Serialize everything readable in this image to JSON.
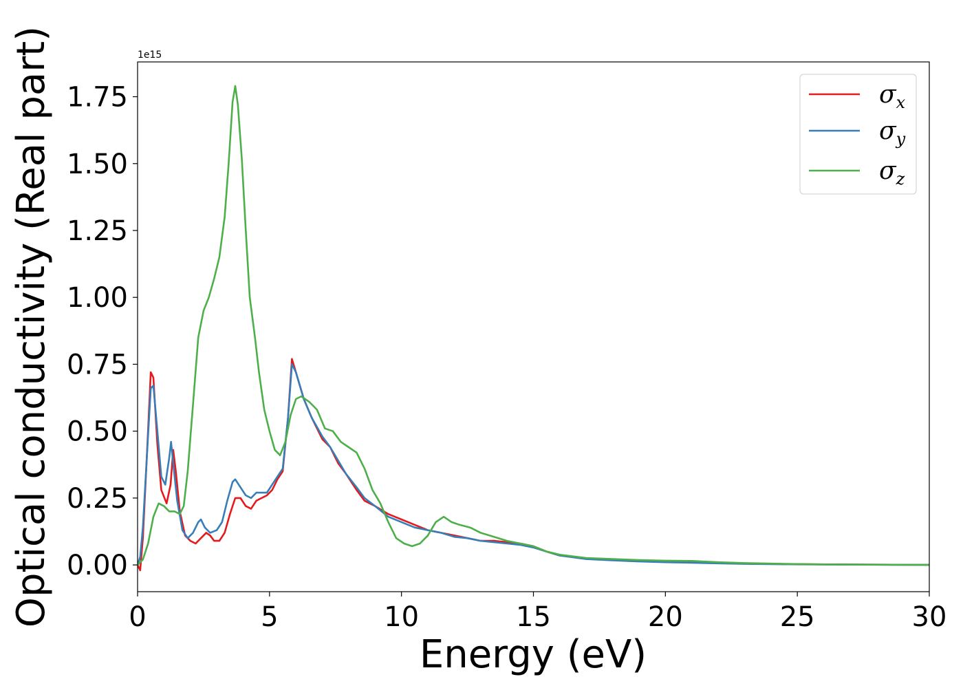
{
  "chart_data": {
    "type": "line",
    "title": "",
    "xlabel": "Energy (eV)",
    "ylabel": "Optical conductivity (Real part)",
    "y_offset_label": "1e15",
    "xlim": [
      0,
      30
    ],
    "ylim": [
      -0.1,
      1.88
    ],
    "x_ticks": [
      0,
      5,
      10,
      15,
      20,
      25,
      30
    ],
    "x_tick_labels": [
      "0",
      "5",
      "10",
      "15",
      "20",
      "25",
      "30"
    ],
    "y_ticks": [
      0.0,
      0.25,
      0.5,
      0.75,
      1.0,
      1.25,
      1.5,
      1.75
    ],
    "y_tick_labels": [
      "0.00",
      "0.25",
      "0.50",
      "0.75",
      "1.00",
      "1.25",
      "1.50",
      "1.75"
    ],
    "grid": false,
    "legend_position": "top-right",
    "series": [
      {
        "name": "σ",
        "subscript": "x",
        "color": "#e41a1c",
        "points": [
          [
            0,
            0.0
          ],
          [
            0.1,
            -0.02
          ],
          [
            0.2,
            0.1
          ],
          [
            0.35,
            0.4
          ],
          [
            0.5,
            0.72
          ],
          [
            0.6,
            0.7
          ],
          [
            0.75,
            0.45
          ],
          [
            0.9,
            0.28
          ],
          [
            1.1,
            0.23
          ],
          [
            1.25,
            0.3
          ],
          [
            1.35,
            0.43
          ],
          [
            1.45,
            0.35
          ],
          [
            1.6,
            0.2
          ],
          [
            1.8,
            0.11
          ],
          [
            2.0,
            0.09
          ],
          [
            2.2,
            0.08
          ],
          [
            2.4,
            0.1
          ],
          [
            2.6,
            0.12
          ],
          [
            2.75,
            0.11
          ],
          [
            2.9,
            0.09
          ],
          [
            3.1,
            0.09
          ],
          [
            3.3,
            0.12
          ],
          [
            3.5,
            0.19
          ],
          [
            3.7,
            0.25
          ],
          [
            3.9,
            0.25
          ],
          [
            4.1,
            0.22
          ],
          [
            4.3,
            0.21
          ],
          [
            4.5,
            0.24
          ],
          [
            4.7,
            0.25
          ],
          [
            4.9,
            0.26
          ],
          [
            5.1,
            0.28
          ],
          [
            5.3,
            0.32
          ],
          [
            5.5,
            0.35
          ],
          [
            5.7,
            0.55
          ],
          [
            5.85,
            0.77
          ],
          [
            6.0,
            0.72
          ],
          [
            6.3,
            0.62
          ],
          [
            6.6,
            0.55
          ],
          [
            7.0,
            0.47
          ],
          [
            7.3,
            0.44
          ],
          [
            7.6,
            0.38
          ],
          [
            7.9,
            0.34
          ],
          [
            8.3,
            0.28
          ],
          [
            8.6,
            0.24
          ],
          [
            9.0,
            0.22
          ],
          [
            9.5,
            0.19
          ],
          [
            10.0,
            0.17
          ],
          [
            10.5,
            0.15
          ],
          [
            11.0,
            0.13
          ],
          [
            11.5,
            0.12
          ],
          [
            12.0,
            0.11
          ],
          [
            12.5,
            0.1
          ],
          [
            13.0,
            0.09
          ],
          [
            13.5,
            0.09
          ],
          [
            14.0,
            0.085
          ],
          [
            14.5,
            0.08
          ],
          [
            15.0,
            0.07
          ],
          [
            15.5,
            0.05
          ],
          [
            16.0,
            0.035
          ],
          [
            17.0,
            0.025
          ],
          [
            18.0,
            0.02
          ],
          [
            19.0,
            0.015
          ],
          [
            20.0,
            0.013
          ],
          [
            21.0,
            0.01
          ],
          [
            22.0,
            0.007
          ],
          [
            23.0,
            0.005
          ],
          [
            24.0,
            0.004
          ],
          [
            25.0,
            0.003
          ],
          [
            26.0,
            0.002
          ],
          [
            28.0,
            0.001
          ],
          [
            30.0,
            0.0
          ]
        ]
      },
      {
        "name": "σ",
        "subscript": "y",
        "color": "#377eb8",
        "points": [
          [
            0,
            0.0
          ],
          [
            0.1,
            0.03
          ],
          [
            0.2,
            0.14
          ],
          [
            0.35,
            0.4
          ],
          [
            0.5,
            0.66
          ],
          [
            0.6,
            0.67
          ],
          [
            0.75,
            0.5
          ],
          [
            0.9,
            0.33
          ],
          [
            1.05,
            0.3
          ],
          [
            1.2,
            0.4
          ],
          [
            1.27,
            0.46
          ],
          [
            1.35,
            0.38
          ],
          [
            1.5,
            0.24
          ],
          [
            1.7,
            0.13
          ],
          [
            1.9,
            0.1
          ],
          [
            2.1,
            0.12
          ],
          [
            2.3,
            0.16
          ],
          [
            2.4,
            0.17
          ],
          [
            2.55,
            0.14
          ],
          [
            2.75,
            0.12
          ],
          [
            3.0,
            0.13
          ],
          [
            3.2,
            0.16
          ],
          [
            3.4,
            0.24
          ],
          [
            3.6,
            0.31
          ],
          [
            3.7,
            0.32
          ],
          [
            3.9,
            0.29
          ],
          [
            4.1,
            0.26
          ],
          [
            4.3,
            0.25
          ],
          [
            4.5,
            0.27
          ],
          [
            4.7,
            0.27
          ],
          [
            4.9,
            0.27
          ],
          [
            5.1,
            0.3
          ],
          [
            5.3,
            0.33
          ],
          [
            5.5,
            0.36
          ],
          [
            5.7,
            0.55
          ],
          [
            5.85,
            0.75
          ],
          [
            6.0,
            0.72
          ],
          [
            6.3,
            0.62
          ],
          [
            6.6,
            0.55
          ],
          [
            7.0,
            0.48
          ],
          [
            7.3,
            0.44
          ],
          [
            7.6,
            0.39
          ],
          [
            7.9,
            0.34
          ],
          [
            8.3,
            0.29
          ],
          [
            8.6,
            0.25
          ],
          [
            9.0,
            0.22
          ],
          [
            9.5,
            0.18
          ],
          [
            10.0,
            0.16
          ],
          [
            10.5,
            0.14
          ],
          [
            11.0,
            0.13
          ],
          [
            11.5,
            0.12
          ],
          [
            12.0,
            0.105
          ],
          [
            12.5,
            0.1
          ],
          [
            13.0,
            0.09
          ],
          [
            13.5,
            0.085
          ],
          [
            14.0,
            0.08
          ],
          [
            14.5,
            0.075
          ],
          [
            15.0,
            0.065
          ],
          [
            15.5,
            0.05
          ],
          [
            16.0,
            0.035
          ],
          [
            17.0,
            0.022
          ],
          [
            18.0,
            0.017
          ],
          [
            19.0,
            0.013
          ],
          [
            20.0,
            0.01
          ],
          [
            21.0,
            0.008
          ],
          [
            22.0,
            0.006
          ],
          [
            23.0,
            0.004
          ],
          [
            24.0,
            0.003
          ],
          [
            25.0,
            0.002
          ],
          [
            27.0,
            0.001
          ],
          [
            30.0,
            0.0
          ]
        ]
      },
      {
        "name": "σ",
        "subscript": "z",
        "color": "#4daf4a",
        "points": [
          [
            0,
            0.0
          ],
          [
            0.2,
            0.02
          ],
          [
            0.4,
            0.08
          ],
          [
            0.6,
            0.18
          ],
          [
            0.8,
            0.23
          ],
          [
            1.0,
            0.22
          ],
          [
            1.2,
            0.2
          ],
          [
            1.4,
            0.2
          ],
          [
            1.6,
            0.19
          ],
          [
            1.75,
            0.22
          ],
          [
            1.9,
            0.35
          ],
          [
            2.1,
            0.6
          ],
          [
            2.3,
            0.85
          ],
          [
            2.5,
            0.95
          ],
          [
            2.7,
            1.0
          ],
          [
            2.9,
            1.07
          ],
          [
            3.1,
            1.15
          ],
          [
            3.3,
            1.3
          ],
          [
            3.45,
            1.5
          ],
          [
            3.6,
            1.73
          ],
          [
            3.7,
            1.79
          ],
          [
            3.8,
            1.72
          ],
          [
            3.95,
            1.52
          ],
          [
            4.1,
            1.25
          ],
          [
            4.25,
            1.0
          ],
          [
            4.45,
            0.85
          ],
          [
            4.6,
            0.72
          ],
          [
            4.8,
            0.58
          ],
          [
            5.0,
            0.5
          ],
          [
            5.2,
            0.43
          ],
          [
            5.4,
            0.41
          ],
          [
            5.6,
            0.46
          ],
          [
            5.8,
            0.56
          ],
          [
            6.0,
            0.62
          ],
          [
            6.2,
            0.63
          ],
          [
            6.5,
            0.61
          ],
          [
            6.8,
            0.58
          ],
          [
            7.1,
            0.51
          ],
          [
            7.4,
            0.5
          ],
          [
            7.7,
            0.46
          ],
          [
            8.0,
            0.44
          ],
          [
            8.3,
            0.42
          ],
          [
            8.6,
            0.36
          ],
          [
            8.9,
            0.28
          ],
          [
            9.2,
            0.23
          ],
          [
            9.5,
            0.16
          ],
          [
            9.8,
            0.1
          ],
          [
            10.1,
            0.08
          ],
          [
            10.4,
            0.07
          ],
          [
            10.7,
            0.08
          ],
          [
            11.0,
            0.11
          ],
          [
            11.3,
            0.16
          ],
          [
            11.6,
            0.18
          ],
          [
            11.9,
            0.16
          ],
          [
            12.2,
            0.15
          ],
          [
            12.6,
            0.14
          ],
          [
            13.0,
            0.12
          ],
          [
            13.5,
            0.105
          ],
          [
            14.0,
            0.09
          ],
          [
            14.5,
            0.08
          ],
          [
            15.0,
            0.07
          ],
          [
            15.5,
            0.05
          ],
          [
            16.0,
            0.038
          ],
          [
            17.0,
            0.026
          ],
          [
            18.0,
            0.022
          ],
          [
            19.0,
            0.018
          ],
          [
            20.0,
            0.016
          ],
          [
            21.0,
            0.015
          ],
          [
            22.0,
            0.01
          ],
          [
            23.0,
            0.007
          ],
          [
            24.0,
            0.005
          ],
          [
            25.0,
            0.003
          ],
          [
            26.0,
            0.002
          ],
          [
            28.0,
            0.001
          ],
          [
            30.0,
            0.0
          ]
        ]
      }
    ]
  }
}
